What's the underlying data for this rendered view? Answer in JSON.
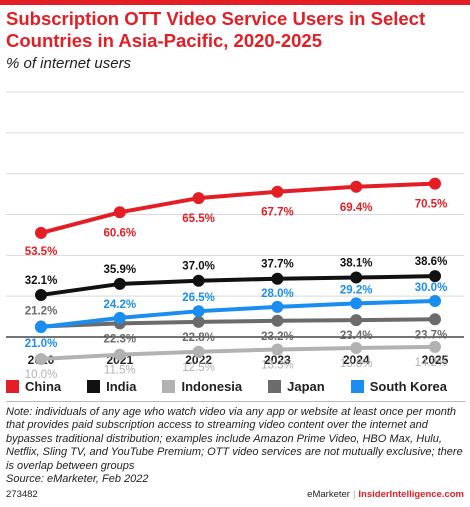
{
  "title": "Subscription OTT Video Service Users in Select Countries in Asia-Pacific, 2020-2025",
  "subtitle": "% of internet users",
  "note": "Note: individuals of any age who watch video via any app or website at least once per month that provides paid subscription access to streaming video content over the internet and bypasses traditional distribution; examples include Amazon Prime Video, HBO Max, Hulu, Netflix, Sling TV, and YouTube Premium; OTT video services are not mutually exclusive; there is overlap between groups",
  "source": "Source: eMarketer, Feb 2022",
  "footer": {
    "id": "273482",
    "brand": "eMarketer",
    "separator": "|",
    "site": "InsiderIntelligence.com"
  },
  "colors": {
    "brand_red": "#e31e25"
  },
  "chart_data": {
    "type": "line",
    "x": [
      "2020",
      "2021",
      "2022",
      "2023",
      "2024",
      "2025"
    ],
    "ylim": [
      0,
      80
    ],
    "grid": true,
    "legend": "bottom",
    "series": [
      {
        "name": "China",
        "color": "#e31e25",
        "values": [
          53.5,
          60.6,
          65.5,
          67.7,
          69.4,
          70.5
        ],
        "labels": [
          "53.5%",
          "60.6%",
          "65.5%",
          "67.7%",
          "69.4%",
          "70.5%"
        ]
      },
      {
        "name": "India",
        "color": "#111111",
        "values": [
          32.1,
          35.9,
          37.0,
          37.7,
          38.1,
          38.6
        ],
        "labels": [
          "32.1%",
          "35.9%",
          "37.0%",
          "37.7%",
          "38.1%",
          "38.6%"
        ]
      },
      {
        "name": "Indonesia",
        "color": "#b2b2b2",
        "values": [
          10.0,
          11.5,
          12.5,
          13.3,
          13.8,
          14.2
        ],
        "labels": [
          "10.0%",
          "11.5%",
          "12.5%",
          "13.3%",
          "13.8%",
          "14.2%"
        ]
      },
      {
        "name": "Japan",
        "color": "#6b6b6b",
        "values": [
          21.2,
          22.3,
          22.8,
          23.2,
          23.4,
          23.7
        ],
        "labels": [
          "21.2%",
          "22.3%",
          "22.8%",
          "23.2%",
          "23.4%",
          "23.7%"
        ]
      },
      {
        "name": "South Korea",
        "color": "#1a8ef0",
        "values": [
          21.0,
          24.2,
          26.5,
          28.0,
          29.2,
          30.0
        ],
        "labels": [
          "21.0%",
          "24.2%",
          "26.5%",
          "28.0%",
          "29.2%",
          "30.0%"
        ]
      }
    ]
  }
}
